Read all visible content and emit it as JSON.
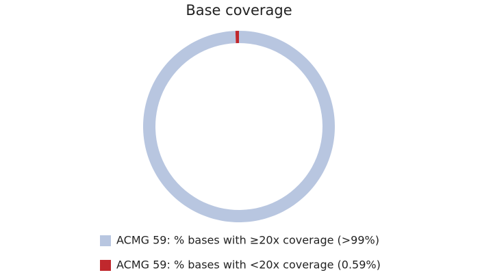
{
  "chart_data": {
    "type": "donut",
    "title": "Base coverage",
    "categories": [
      "ACMG 59: % bases with ≥20x coverage (>99%)",
      "ACMG 59: % bases with <20x coverage (0.59%)"
    ],
    "values": [
      99.41,
      0.59
    ],
    "colors": [
      "#b8c6e0",
      "#c0282d"
    ]
  }
}
